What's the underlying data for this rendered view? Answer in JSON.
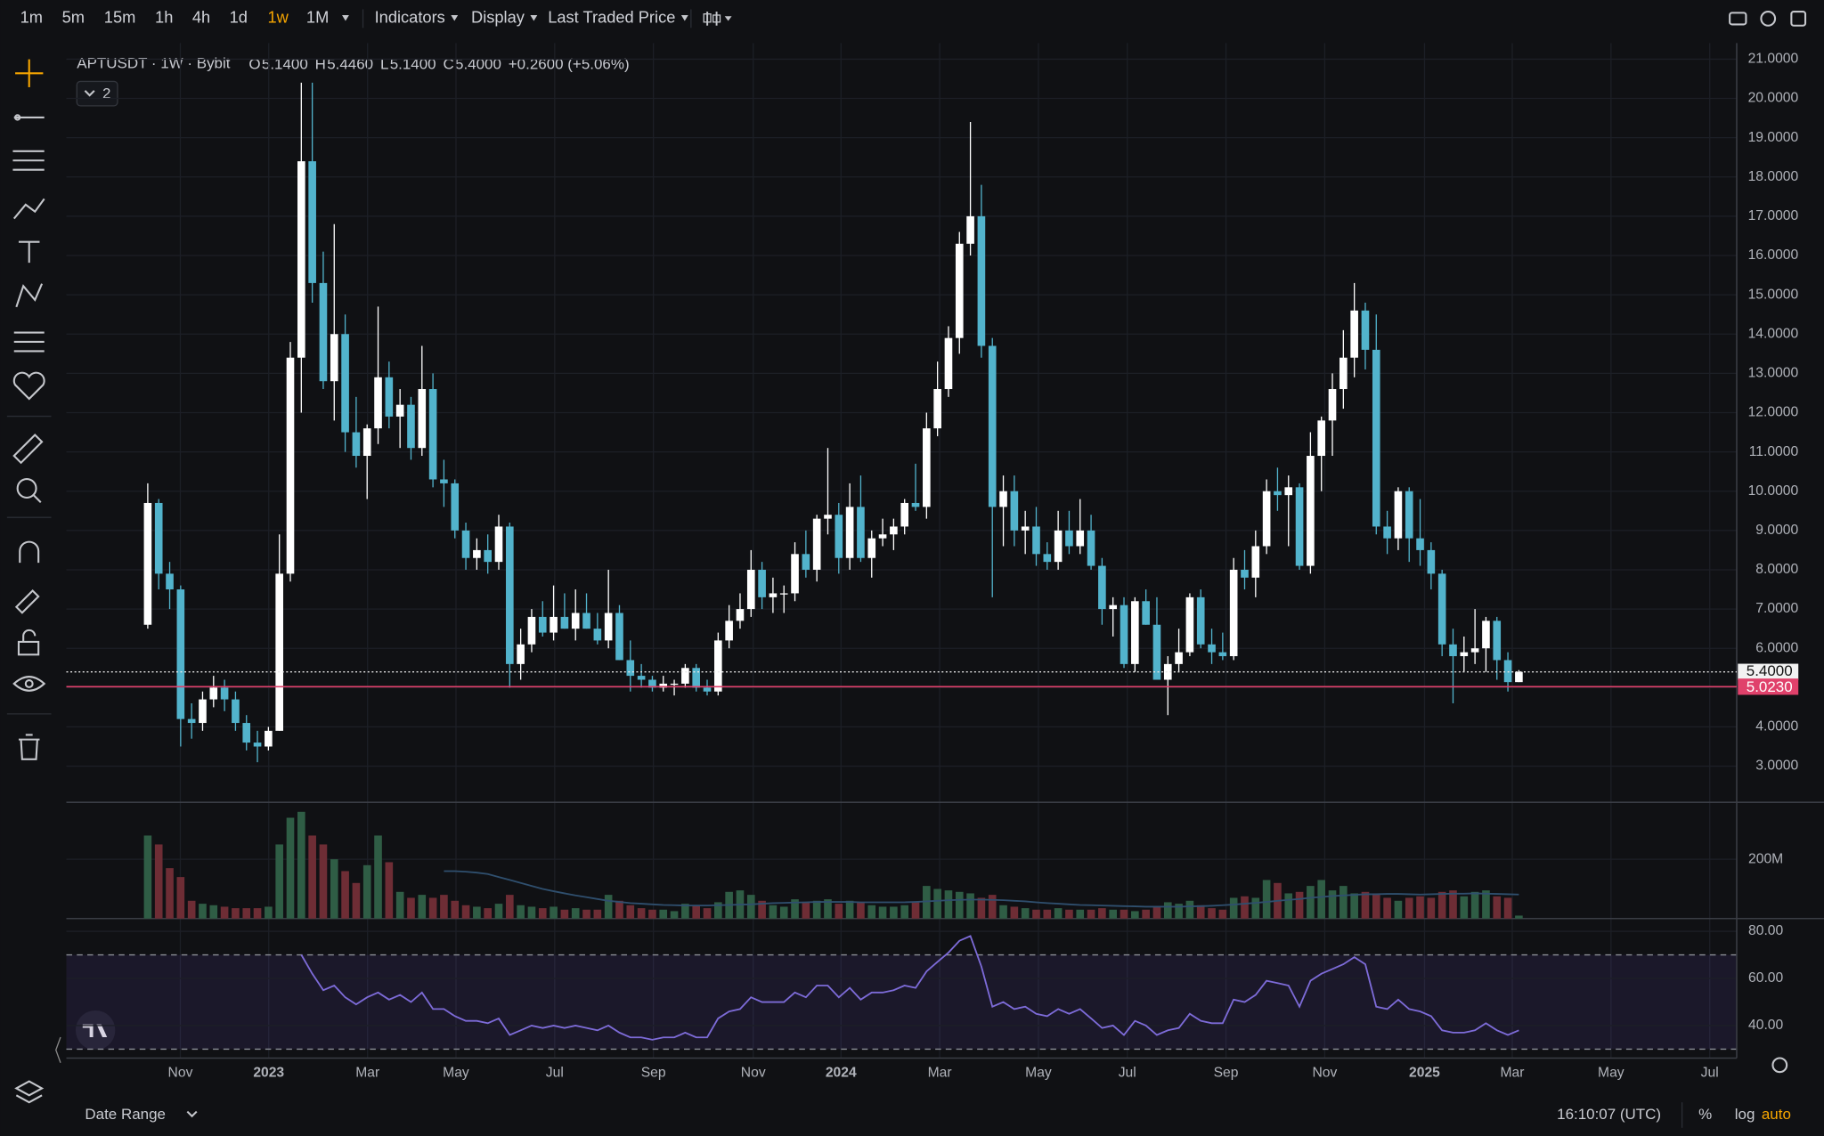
{
  "toolbar": {
    "intervals": [
      "1m",
      "5m",
      "15m",
      "1h",
      "4h",
      "1d",
      "1w",
      "1M"
    ],
    "active_interval": "1w",
    "menus": [
      "Indicators",
      "Display",
      "Last Traded Price"
    ]
  },
  "legend": {
    "symbol": "APTUSDT · 1W · Bybit",
    "ohlc": [
      {
        "key": "O",
        "value": "5.1400"
      },
      {
        "key": "H",
        "value": "5.4460"
      },
      {
        "key": "L",
        "value": "5.1400"
      },
      {
        "key": "C",
        "value": "5.4000"
      }
    ],
    "change": "+0.2600 (+5.06%)",
    "indicator_count": "2"
  },
  "footer": {
    "date_range": "Date Range",
    "time": "16:10:07 (UTC)",
    "options": [
      "%",
      "log",
      "auto"
    ]
  },
  "chart_data": {
    "type": "candlestick",
    "up_color": "#ffffff",
    "down_color": "#52b3cc",
    "candles": [
      [
        6.6,
        10.2,
        6.5,
        9.7
      ],
      [
        9.7,
        9.8,
        7.5,
        7.9
      ],
      [
        7.9,
        8.2,
        7.0,
        7.5
      ],
      [
        7.5,
        7.6,
        3.5,
        4.2
      ],
      [
        4.2,
        4.6,
        3.7,
        4.1
      ],
      [
        4.1,
        4.9,
        3.9,
        4.7
      ],
      [
        4.7,
        5.3,
        4.5,
        5.0
      ],
      [
        5.0,
        5.2,
        4.4,
        4.7
      ],
      [
        4.7,
        4.9,
        3.9,
        4.1
      ],
      [
        4.1,
        4.3,
        3.4,
        3.6
      ],
      [
        3.6,
        3.9,
        3.1,
        3.5
      ],
      [
        3.5,
        4.0,
        3.4,
        3.9
      ],
      [
        3.9,
        8.9,
        3.9,
        7.9
      ],
      [
        7.9,
        13.8,
        7.7,
        13.4
      ],
      [
        13.4,
        20.4,
        12.0,
        18.4
      ],
      [
        18.4,
        20.4,
        14.8,
        15.3
      ],
      [
        15.3,
        16.1,
        12.6,
        12.8
      ],
      [
        12.8,
        16.8,
        11.8,
        14.0
      ],
      [
        14.0,
        14.5,
        11.0,
        11.5
      ],
      [
        11.5,
        12.4,
        10.6,
        10.9
      ],
      [
        10.9,
        11.7,
        9.8,
        11.6
      ],
      [
        11.6,
        14.7,
        11.2,
        12.9
      ],
      [
        12.9,
        13.3,
        11.6,
        11.9
      ],
      [
        11.9,
        12.6,
        11.1,
        12.2
      ],
      [
        12.2,
        12.4,
        10.8,
        11.1
      ],
      [
        11.1,
        13.7,
        10.9,
        12.6
      ],
      [
        12.6,
        13.0,
        10.1,
        10.3
      ],
      [
        10.3,
        10.8,
        9.6,
        10.2
      ],
      [
        10.2,
        10.3,
        8.8,
        9.0
      ],
      [
        9.0,
        9.2,
        8.0,
        8.3
      ],
      [
        8.3,
        8.8,
        8.0,
        8.5
      ],
      [
        8.5,
        8.9,
        7.9,
        8.2
      ],
      [
        8.2,
        9.4,
        8.0,
        9.1
      ],
      [
        9.1,
        9.2,
        5.0,
        5.6
      ],
      [
        5.6,
        6.5,
        5.2,
        6.1
      ],
      [
        6.1,
        7.0,
        5.9,
        6.8
      ],
      [
        6.8,
        7.2,
        6.3,
        6.4
      ],
      [
        6.4,
        7.6,
        6.2,
        6.8
      ],
      [
        6.8,
        7.4,
        6.5,
        6.5
      ],
      [
        6.5,
        7.5,
        6.2,
        6.9
      ],
      [
        6.9,
        7.4,
        6.5,
        6.5
      ],
      [
        6.5,
        6.9,
        6.1,
        6.2
      ],
      [
        6.2,
        8.0,
        6.0,
        6.9
      ],
      [
        6.9,
        7.1,
        5.7,
        5.7
      ],
      [
        5.7,
        6.2,
        4.9,
        5.3
      ],
      [
        5.3,
        5.6,
        5.0,
        5.2
      ],
      [
        5.2,
        5.3,
        4.9,
        5.0
      ],
      [
        5.0,
        5.3,
        4.9,
        5.1
      ],
      [
        5.1,
        5.2,
        4.8,
        5.1
      ],
      [
        5.1,
        5.6,
        5.0,
        5.5
      ],
      [
        5.5,
        5.6,
        4.9,
        5.0
      ],
      [
        5.0,
        5.2,
        4.8,
        4.9
      ],
      [
        4.9,
        6.4,
        4.8,
        6.2
      ],
      [
        6.2,
        7.1,
        6.0,
        6.7
      ],
      [
        6.7,
        7.4,
        6.5,
        7.0
      ],
      [
        7.0,
        8.5,
        6.8,
        8.0
      ],
      [
        8.0,
        8.2,
        7.0,
        7.3
      ],
      [
        7.3,
        7.8,
        6.9,
        7.4
      ],
      [
        7.4,
        7.6,
        6.9,
        7.4
      ],
      [
        7.4,
        8.7,
        7.2,
        8.4
      ],
      [
        8.4,
        9.0,
        7.8,
        8.0
      ],
      [
        8.0,
        9.4,
        7.7,
        9.3
      ],
      [
        9.3,
        11.1,
        8.9,
        9.4
      ],
      [
        9.4,
        9.7,
        7.9,
        8.3
      ],
      [
        8.3,
        10.2,
        8.0,
        9.6
      ],
      [
        9.6,
        10.4,
        8.2,
        8.3
      ],
      [
        8.3,
        9.0,
        7.8,
        8.8
      ],
      [
        8.8,
        9.3,
        8.6,
        8.9
      ],
      [
        8.9,
        9.3,
        8.5,
        9.1
      ],
      [
        9.1,
        9.8,
        8.9,
        9.7
      ],
      [
        9.7,
        10.7,
        9.5,
        9.6
      ],
      [
        9.6,
        12.0,
        9.3,
        11.6
      ],
      [
        11.6,
        13.3,
        11.4,
        12.6
      ],
      [
        12.6,
        14.2,
        12.4,
        13.9
      ],
      [
        13.9,
        16.6,
        13.5,
        16.3
      ],
      [
        16.3,
        19.4,
        16.0,
        17.0
      ],
      [
        17.0,
        17.8,
        13.4,
        13.7
      ],
      [
        13.7,
        13.9,
        7.3,
        9.6
      ],
      [
        9.6,
        10.4,
        8.6,
        10.0
      ],
      [
        10.0,
        10.4,
        8.6,
        9.0
      ],
      [
        9.0,
        9.5,
        8.4,
        9.1
      ],
      [
        9.1,
        9.6,
        8.1,
        8.4
      ],
      [
        8.4,
        8.7,
        8.0,
        8.2
      ],
      [
        8.2,
        9.5,
        8.0,
        9.0
      ],
      [
        9.0,
        9.5,
        8.4,
        8.6
      ],
      [
        8.6,
        9.8,
        8.4,
        9.0
      ],
      [
        9.0,
        9.4,
        8.0,
        8.1
      ],
      [
        8.1,
        8.3,
        6.6,
        7.0
      ],
      [
        7.0,
        7.3,
        6.3,
        7.1
      ],
      [
        7.1,
        7.3,
        5.5,
        5.6
      ],
      [
        5.6,
        7.3,
        5.4,
        7.2
      ],
      [
        7.2,
        7.5,
        6.6,
        6.6
      ],
      [
        6.6,
        7.3,
        5.2,
        5.2
      ],
      [
        5.2,
        5.8,
        4.3,
        5.6
      ],
      [
        5.6,
        6.5,
        5.4,
        5.9
      ],
      [
        5.9,
        7.4,
        5.8,
        7.3
      ],
      [
        7.3,
        7.5,
        6.0,
        6.1
      ],
      [
        6.1,
        6.5,
        5.6,
        5.9
      ],
      [
        5.9,
        6.4,
        5.7,
        5.8
      ],
      [
        5.8,
        8.3,
        5.7,
        8.0
      ],
      [
        8.0,
        8.5,
        7.5,
        7.8
      ],
      [
        7.8,
        9.0,
        7.3,
        8.6
      ],
      [
        8.6,
        10.3,
        8.4,
        10.0
      ],
      [
        10.0,
        10.6,
        9.5,
        9.9
      ],
      [
        9.9,
        10.4,
        8.6,
        10.1
      ],
      [
        10.1,
        10.2,
        8.0,
        8.1
      ],
      [
        8.1,
        11.5,
        7.9,
        10.9
      ],
      [
        10.9,
        11.9,
        10.0,
        11.8
      ],
      [
        11.8,
        13.0,
        10.9,
        12.6
      ],
      [
        12.6,
        14.1,
        12.1,
        13.4
      ],
      [
        13.4,
        15.3,
        12.9,
        14.6
      ],
      [
        14.6,
        14.8,
        13.1,
        13.6
      ],
      [
        13.6,
        14.5,
        8.9,
        9.1
      ],
      [
        9.1,
        9.5,
        8.4,
        8.8
      ],
      [
        8.8,
        10.1,
        8.5,
        10.0
      ],
      [
        10.0,
        10.1,
        8.2,
        8.8
      ],
      [
        8.8,
        9.8,
        8.1,
        8.5
      ],
      [
        8.5,
        8.7,
        7.5,
        7.9
      ],
      [
        7.9,
        8.0,
        5.8,
        6.1
      ],
      [
        6.1,
        6.5,
        4.6,
        5.8
      ],
      [
        5.8,
        6.3,
        5.4,
        5.9
      ],
      [
        5.9,
        7.0,
        5.6,
        6.0
      ],
      [
        6.0,
        6.8,
        5.4,
        6.7
      ],
      [
        6.7,
        6.8,
        5.2,
        5.7
      ],
      [
        5.7,
        5.9,
        4.9,
        5.14
      ],
      [
        5.14,
        5.446,
        5.14,
        5.4
      ]
    ],
    "xlim": [
      -7.42,
      144.86
    ],
    "xticks": [
      {
        "value": 2.97,
        "label": "Nov"
      },
      {
        "value": 11.03,
        "label": "2023"
      },
      {
        "value": 20.04,
        "label": "Mar"
      },
      {
        "value": 28.1,
        "label": "May"
      },
      {
        "value": 37.1,
        "label": "Jul"
      },
      {
        "value": 46.1,
        "label": "Sep"
      },
      {
        "value": 55.2,
        "label": "Nov"
      },
      {
        "value": 63.2,
        "label": "2024"
      },
      {
        "value": 72.2,
        "label": "Mar"
      },
      {
        "value": 81.2,
        "label": "May"
      },
      {
        "value": 89.3,
        "label": "Jul"
      },
      {
        "value": 98.3,
        "label": "Sep"
      },
      {
        "value": 107.3,
        "label": "Nov"
      },
      {
        "value": 116.4,
        "label": "2025"
      },
      {
        "value": 124.4,
        "label": "Mar"
      },
      {
        "value": 133.4,
        "label": "May"
      },
      {
        "value": 142.4,
        "label": "Jul"
      }
    ],
    "ylim": [
      2.08,
      21.41
    ],
    "yticks": [
      {
        "value": 3,
        "label": "3.0000"
      },
      {
        "value": 4,
        "label": "4.0000"
      },
      {
        "value": 5,
        "label": "5.0000"
      },
      {
        "value": 6,
        "label": "6.0000"
      },
      {
        "value": 7,
        "label": "7.0000"
      },
      {
        "value": 8,
        "label": "8.0000"
      },
      {
        "value": 9,
        "label": "9.0000"
      },
      {
        "value": 10,
        "label": "10.0000"
      },
      {
        "value": 11,
        "label": "11.0000"
      },
      {
        "value": 12,
        "label": "12.0000"
      },
      {
        "value": 13,
        "label": "13.0000"
      },
      {
        "value": 14,
        "label": "14.0000"
      },
      {
        "value": 15,
        "label": "15.0000"
      },
      {
        "value": 16,
        "label": "16.0000"
      },
      {
        "value": 17,
        "label": "17.0000"
      },
      {
        "value": 18,
        "label": "18.0000"
      },
      {
        "value": 19,
        "label": "19.0000"
      },
      {
        "value": 20,
        "label": "20.0000"
      },
      {
        "value": 21,
        "label": "21.0000"
      }
    ],
    "grid": true,
    "last_price": {
      "value": 5.4,
      "label": "5.4000"
    },
    "price_line": {
      "value": 5.023,
      "label": "5.0230",
      "color": "#e0416b"
    },
    "volume": {
      "up_color": "#2f5d45",
      "down_color": "#6e2d35",
      "ma_color": "#2f4f6e",
      "values": [
        280,
        250,
        170,
        140,
        60,
        50,
        45,
        40,
        35,
        35,
        35,
        40,
        250,
        340,
        360,
        280,
        250,
        200,
        160,
        120,
        180,
        280,
        190,
        90,
        70,
        80,
        70,
        80,
        60,
        45,
        40,
        35,
        50,
        80,
        45,
        40,
        35,
        40,
        30,
        35,
        30,
        30,
        80,
        60,
        45,
        35,
        30,
        30,
        25,
        50,
        45,
        35,
        55,
        90,
        95,
        80,
        60,
        45,
        40,
        65,
        55,
        60,
        65,
        50,
        60,
        55,
        45,
        40,
        40,
        45,
        55,
        110,
        100,
        95,
        90,
        85,
        70,
        80,
        45,
        40,
        35,
        30,
        30,
        35,
        30,
        30,
        30,
        35,
        30,
        30,
        25,
        30,
        40,
        55,
        50,
        60,
        45,
        35,
        30,
        70,
        75,
        70,
        130,
        120,
        85,
        90,
        110,
        130,
        95,
        110,
        85,
        90,
        85,
        70,
        60,
        70,
        75,
        70,
        90,
        95,
        75,
        90,
        95,
        75,
        70,
        10
      ],
      "ma": [
        null,
        null,
        null,
        null,
        null,
        null,
        null,
        null,
        null,
        null,
        null,
        null,
        null,
        null,
        null,
        null,
        null,
        null,
        null,
        null,
        null,
        null,
        null,
        null,
        null,
        null,
        null,
        160,
        160,
        158,
        155,
        150,
        140,
        130,
        120,
        110,
        100,
        92,
        85,
        78,
        72,
        66,
        60,
        56,
        52,
        50,
        48,
        46,
        45,
        44,
        44,
        44,
        45,
        46,
        47,
        48,
        50,
        52,
        53,
        54,
        55,
        56,
        56,
        56,
        56,
        55,
        55,
        55,
        55,
        55,
        56,
        58,
        60,
        62,
        63,
        64,
        64,
        63,
        62,
        60,
        58,
        55,
        52,
        50,
        48,
        46,
        45,
        44,
        43,
        42,
        41,
        40,
        40,
        40,
        40,
        41,
        42,
        43,
        45,
        47,
        50,
        53,
        56,
        60,
        63,
        66,
        70,
        73,
        76,
        78,
        80,
        82,
        82,
        83,
        83,
        82,
        81,
        82,
        83,
        84,
        84,
        85,
        84,
        83,
        82,
        81
      ],
      "ylim": [
        0,
        392
      ],
      "yticks": [
        {
          "value": 200,
          "label": "200M"
        }
      ]
    },
    "rsi": {
      "color": "#7d6bd8",
      "values": [
        null,
        null,
        null,
        null,
        null,
        null,
        null,
        null,
        null,
        null,
        null,
        null,
        null,
        null,
        70,
        62,
        55,
        57,
        52,
        49,
        52,
        54,
        51,
        53,
        50,
        54,
        47,
        47,
        44,
        42,
        42,
        41,
        43,
        36,
        38,
        40,
        39,
        40,
        39,
        40,
        39,
        38,
        40,
        37,
        35,
        35,
        34,
        35,
        35,
        37,
        35,
        35,
        43,
        46,
        47,
        52,
        50,
        50,
        50,
        54,
        52,
        57,
        57,
        52,
        56,
        51,
        54,
        54,
        55,
        57,
        56,
        63,
        67,
        71,
        76,
        78,
        65,
        48,
        50,
        47,
        48,
        45,
        44,
        47,
        45,
        47,
        43,
        39,
        40,
        36,
        42,
        40,
        36,
        38,
        39,
        45,
        42,
        41,
        41,
        51,
        50,
        53,
        59,
        58,
        57,
        48,
        59,
        62,
        64,
        66,
        69,
        66,
        48,
        47,
        51,
        47,
        46,
        44,
        38,
        37,
        37,
        38,
        41,
        38,
        36,
        38
      ],
      "band": [
        30,
        70
      ],
      "ylim": [
        26.2,
        85.4
      ],
      "yticks": [
        {
          "value": 40,
          "label": "40.00"
        },
        {
          "value": 60,
          "label": "60.00"
        },
        {
          "value": 80,
          "label": "80.00"
        }
      ]
    }
  }
}
